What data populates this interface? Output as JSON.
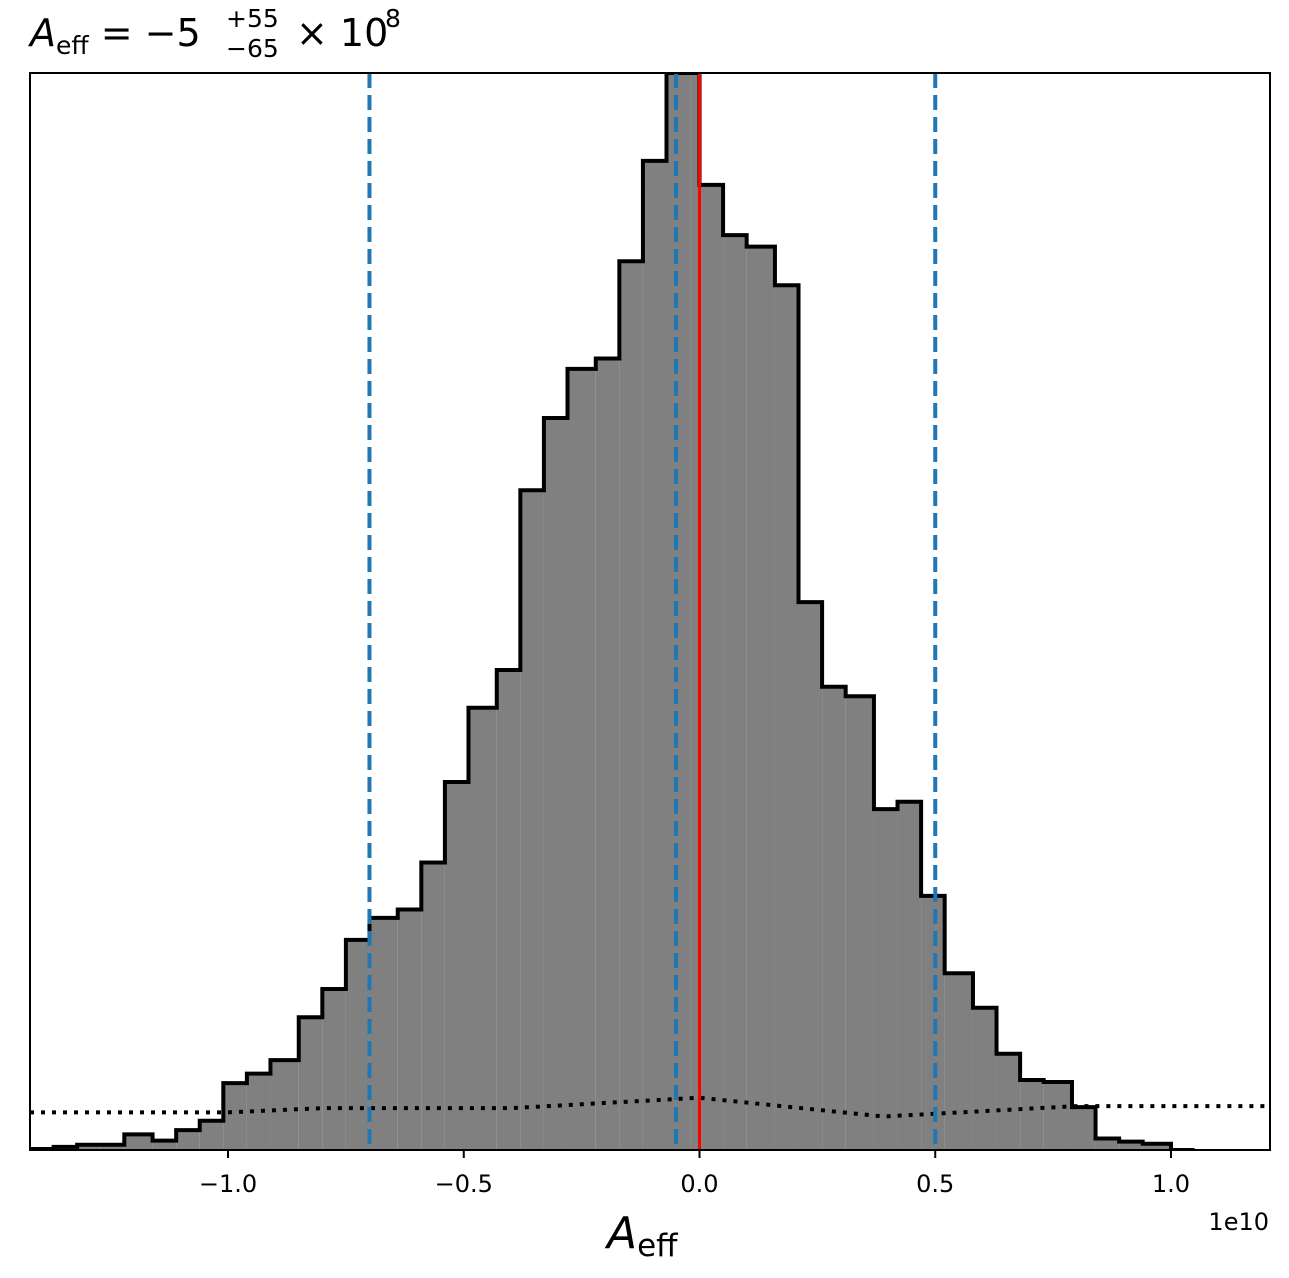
{
  "chart_data": {
    "type": "histogram",
    "title": {
      "symbol": "A",
      "subscript": "eff",
      "equals": " = −5",
      "upper": "+55",
      "lower": "−65",
      "times": "× 10",
      "exponent": "8"
    },
    "xlabel": {
      "symbol": "A",
      "subscript": "eff"
    },
    "x_offset_label": "1e10",
    "xlim": [
      -1.42,
      1.21
    ],
    "ylim": [
      0,
      103
    ],
    "xticks": [
      -1.0,
      -0.5,
      0.0,
      0.5,
      1.0
    ],
    "xtick_labels": [
      "−1.0",
      "−0.5",
      "0.0",
      "0.5",
      "1.0"
    ],
    "yticks": [],
    "grid": false,
    "histogram": {
      "edges": [
        -1.42,
        -1.37,
        -1.32,
        -1.27,
        -1.22,
        -1.16,
        -1.11,
        -1.06,
        -1.01,
        -0.96,
        -0.91,
        -0.85,
        -0.8,
        -0.75,
        -0.7,
        -0.64,
        -0.59,
        -0.54,
        -0.49,
        -0.43,
        -0.38,
        -0.33,
        -0.28,
        -0.22,
        -0.17,
        -0.12,
        -0.07,
        -0.02,
        0.0,
        0.05,
        0.1,
        0.16,
        0.21,
        0.26,
        0.31,
        0.37,
        0.42,
        0.47,
        0.52,
        0.58,
        0.63,
        0.68,
        0.73,
        0.79,
        0.84,
        0.89,
        0.94,
        1.0,
        1.05
      ],
      "counts": [
        0.1,
        0.3,
        0.5,
        0.5,
        1.5,
        0.9,
        1.9,
        2.8,
        6.4,
        7.3,
        8.6,
        12.7,
        15.4,
        20.1,
        22.2,
        23.0,
        27.5,
        35.2,
        42.3,
        45.9,
        63.1,
        70.0,
        74.7,
        75.7,
        85.0,
        94.6,
        103.0,
        103.0,
        92.3,
        87.5,
        86.4,
        82.7,
        52.4,
        44.3,
        43.4,
        32.6,
        33.3,
        24.3,
        16.9,
        13.6,
        9.2,
        6.7,
        6.5,
        4.1,
        1.1,
        0.8,
        0.6,
        0.0
      ],
      "fill_color": "#808080",
      "edge_color": "#000000"
    },
    "vlines": [
      {
        "x": -0.7,
        "style": "dashed",
        "color": "#1f77b4"
      },
      {
        "x": -0.05,
        "style": "dashed",
        "color": "#1f77b4"
      },
      {
        "x": 0.5,
        "style": "dashed",
        "color": "#1f77b4"
      },
      {
        "x": 0.0,
        "style": "solid",
        "color": "#ff0000"
      }
    ],
    "prior_line": {
      "style": "dotted",
      "color": "#000000",
      "x": [
        -1.42,
        -1.0,
        -0.8,
        -0.4,
        0.0,
        0.39,
        0.8,
        1.21
      ],
      "y": [
        3.6,
        3.6,
        4.0,
        4.0,
        5.0,
        3.2,
        4.2,
        4.2
      ]
    }
  }
}
